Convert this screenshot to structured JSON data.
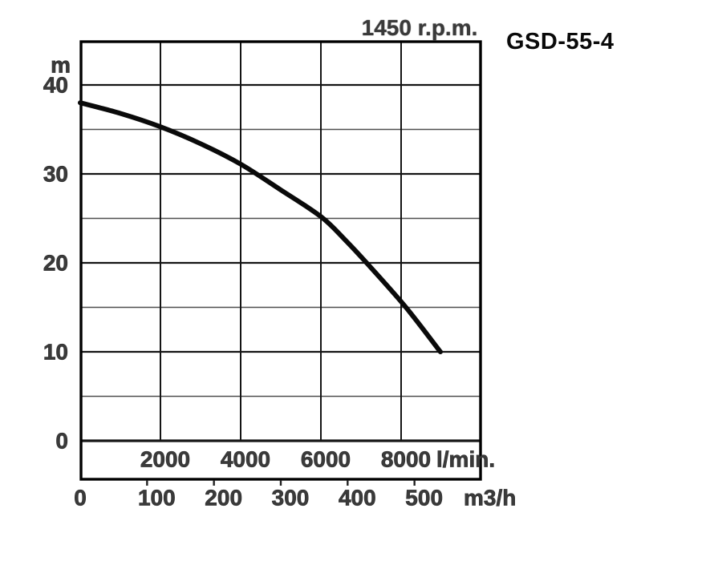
{
  "header": {
    "rpm": "1450 r.p.m.",
    "model": "GSD-55-4"
  },
  "chart_data": {
    "type": "line",
    "title": "1450 r.p.m.",
    "model": "GSD-55-4",
    "grid": "on",
    "legend": "none",
    "curve_color": "#0a0a0a",
    "text_color": "#3a3a3a",
    "series": [
      {
        "name": "head-vs-flow curve",
        "points_lmin_m": [
          [
            0,
            38.0
          ],
          [
            1000,
            36.8
          ],
          [
            2000,
            35.3
          ],
          [
            3000,
            33.4
          ],
          [
            4000,
            31.1
          ],
          [
            5000,
            28.2
          ],
          [
            6000,
            25.2
          ],
          [
            6600,
            22.6
          ],
          [
            7140,
            20.0
          ],
          [
            8120,
            15.0
          ],
          [
            8980,
            10.0
          ]
        ]
      }
    ],
    "x_axis_top": {
      "unit": "l/min.",
      "ticks": [
        2000,
        4000,
        6000,
        8000
      ],
      "range": [
        0,
        10000
      ]
    },
    "x_axis_bottom": {
      "unit": "m3/h",
      "ticks": [
        0,
        100,
        200,
        300,
        400,
        500
      ],
      "range": [
        0,
        600
      ]
    },
    "y_axis": {
      "unit": "m",
      "ticks": [
        40,
        30,
        20,
        10,
        0
      ],
      "minor_gridlines": [
        35,
        25,
        15,
        5
      ],
      "range": [
        0,
        40
      ]
    }
  }
}
